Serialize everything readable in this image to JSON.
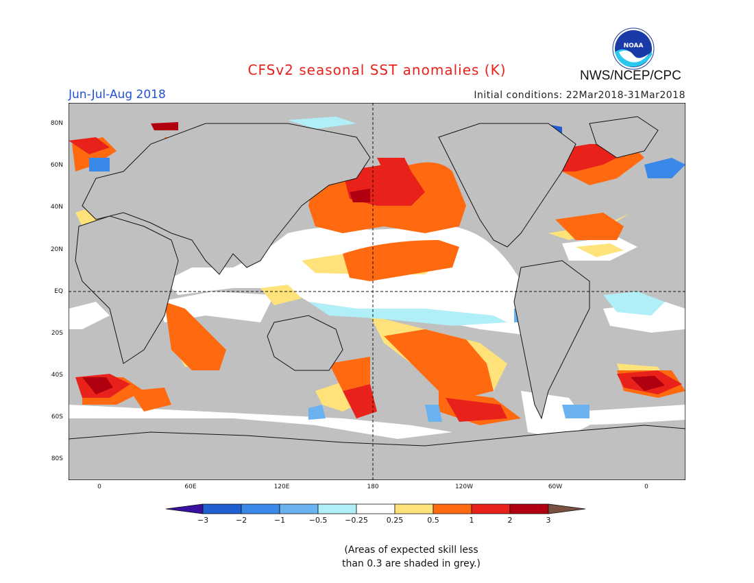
{
  "header": {
    "title": "CFSv2 seasonal SST anomalies (K)",
    "season": "Jun-Jul-Aug 2018",
    "initial_conditions": "Initial conditions: 22Mar2018-31Mar2018",
    "agency": "NWS/NCEP/CPC",
    "logo_text": "NOAA"
  },
  "map": {
    "lat_labels": [
      "80N",
      "60N",
      "40N",
      "20N",
      "EQ",
      "20S",
      "40S",
      "60S",
      "80S"
    ],
    "lon_labels": [
      "0",
      "60E",
      "120E",
      "180",
      "120W",
      "60W",
      "0"
    ],
    "colors": {
      "land": "#c0c0c0",
      "ocean_low_skill": "#c0c0c0",
      "neutral": "#ffffff"
    }
  },
  "colorbar": {
    "ticks": [
      "−3",
      "−2",
      "−1",
      "−0.5",
      "−0.25",
      "0.25",
      "0.5",
      "1",
      "2",
      "3"
    ],
    "colors": [
      "#3a10a0",
      "#1f5fd0",
      "#3a88e8",
      "#6ab2f0",
      "#b0eef8",
      "#ffffff",
      "#ffe27a",
      "#ff6a10",
      "#e8221b",
      "#b00010",
      "#7a5040"
    ]
  },
  "footnote": {
    "line1": "(Areas of expected skill less",
    "line2": "than 0.3 are shaded in grey.)"
  }
}
